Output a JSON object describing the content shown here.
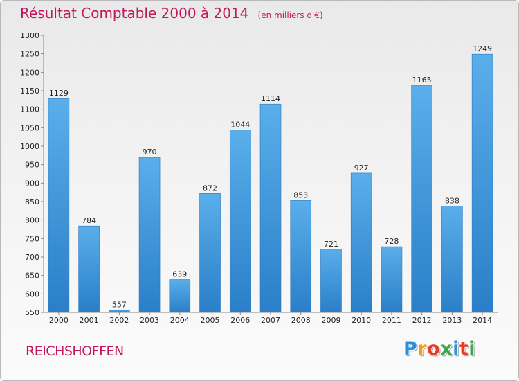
{
  "header": {
    "title": "Résultat Comptable 2000 à 2014",
    "subtitle": "(en milliers d'€)"
  },
  "footer": {
    "city": "REICHSHOFFEN",
    "logo": [
      "P",
      "r",
      "o",
      "x",
      "i",
      "t",
      "i"
    ],
    "logo_colors": [
      "#2f8fd8",
      "#f0a020",
      "#e83a2a",
      "#3aa84a",
      "#2f8fd8",
      "#e83a2a",
      "#3aa84a"
    ]
  },
  "colors": {
    "bar_light": "#5aaeea",
    "bar_dark": "#2a7fc8",
    "axis": "#888888",
    "grid": "#d0d0d0",
    "title": "#c2185b"
  },
  "chart_data": {
    "type": "bar",
    "title": "Résultat Comptable 2000 à 2014",
    "subtitle": "(en milliers d'€)",
    "categories": [
      "2000",
      "2001",
      "2002",
      "2003",
      "2004",
      "2005",
      "2006",
      "2007",
      "2008",
      "2009",
      "2010",
      "2011",
      "2012",
      "2013",
      "2014"
    ],
    "values": [
      1129,
      784,
      557,
      970,
      639,
      872,
      1044,
      1114,
      853,
      721,
      927,
      728,
      1165,
      838,
      1249
    ],
    "ylim": [
      550,
      1300
    ],
    "yticks": [
      550,
      600,
      650,
      700,
      750,
      800,
      850,
      900,
      950,
      1000,
      1050,
      1100,
      1150,
      1200,
      1250,
      1300
    ],
    "grid": false,
    "data_labels": true
  }
}
